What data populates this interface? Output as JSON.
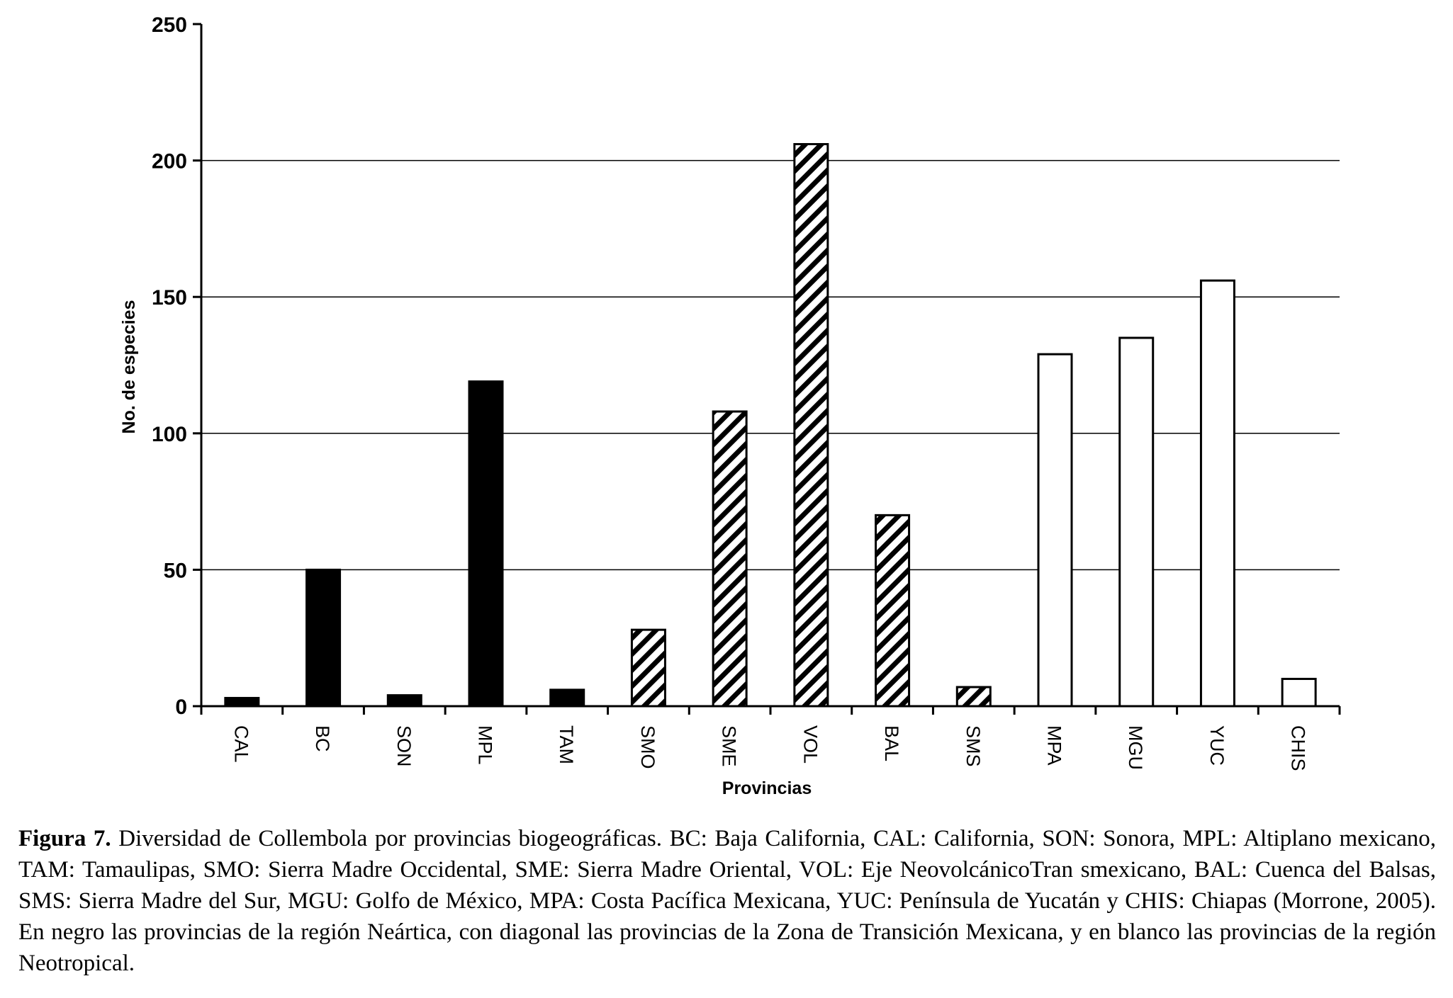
{
  "chart_data": {
    "type": "bar",
    "xlabel": "Provincias",
    "ylabel": "No. de especies",
    "ylim": [
      0,
      250
    ],
    "yticks": [
      0,
      50,
      100,
      150,
      200,
      250
    ],
    "grid": true,
    "categories": [
      "CAL",
      "BC",
      "SON",
      "MPL",
      "TAM",
      "SMO",
      "SME",
      "VOL",
      "BAL",
      "SMS",
      "MPA",
      "MGU",
      "YUC",
      "CHIS"
    ],
    "values": [
      3,
      50,
      4,
      119,
      6,
      28,
      108,
      206,
      70,
      7,
      129,
      135,
      156,
      10
    ],
    "fills": [
      "black",
      "black",
      "black",
      "black",
      "black",
      "hatch",
      "hatch",
      "hatch",
      "hatch",
      "hatch",
      "white",
      "white",
      "white",
      "white"
    ]
  },
  "caption": {
    "label": "Figura 7.",
    "text": " Diversidad de Collembola por provincias biogeográficas. BC: Baja California, CAL: California, SON: Sonora, MPL: Altiplano mexicano, TAM: Tamaulipas, SMO: Sierra Madre Occidental, SME: Sierra Madre Oriental, VOL: Eje NeovolcánicoTran smexicano, BAL: Cuenca del Balsas, SMS: Sierra Madre del Sur, MGU: Golfo de México, MPA: Costa Pacífica Mexicana, YUC: Península de Yucatán y CHIS: Chiapas (Morrone, 2005). En negro las provincias de la región Neártica, con diagonal las provincias de la Zona de Transición Mexicana, y en blanco las provincias de la región Neotropical."
  }
}
